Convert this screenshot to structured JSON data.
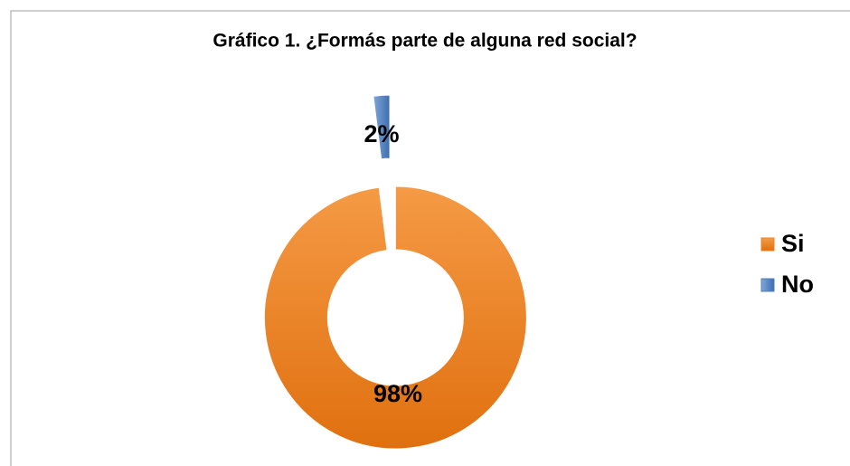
{
  "chart_data": {
    "type": "donut",
    "title": "Gráfico 1. ¿Formás parte de alguna red social?",
    "categories": [
      "Si",
      "No"
    ],
    "values": [
      98,
      2
    ],
    "value_labels": [
      "98%",
      "2%"
    ],
    "colors": [
      "#f07f1f",
      "#4f81bd"
    ],
    "legend": "right"
  }
}
